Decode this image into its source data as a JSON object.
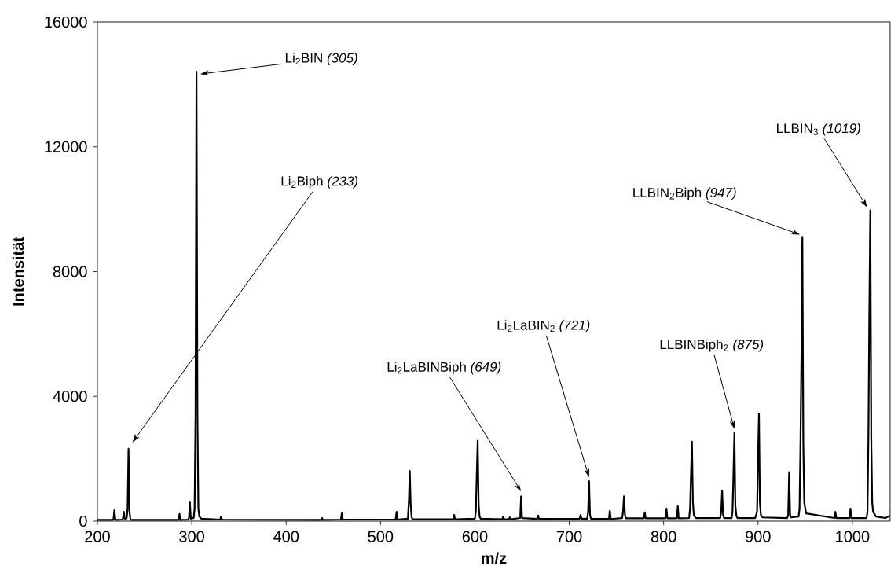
{
  "chart_data": {
    "type": "line",
    "xlabel": "m/z",
    "ylabel": "Intensität",
    "xlim": [
      200,
      1040
    ],
    "ylim": [
      0,
      16000
    ],
    "xticks": [
      200,
      300,
      400,
      500,
      600,
      700,
      800,
      900,
      1000
    ],
    "yticks": [
      0,
      4000,
      8000,
      12000,
      16000
    ],
    "grid": false,
    "marker": "none",
    "line_style": "solid",
    "annotations": [
      "Li$_{2}$BIN *(305)*",
      "Li$_{2}$Biph *(233)*",
      "Li$_{2}$LaBINBiph *(649)*",
      "Li$_{2}$LaBIN$_{2}$ *(721)*",
      "LLBINBiph$_{2}$ *(875)*",
      "LLBIN$_{2}$Biph *(947)*",
      "LLBIN$_{3}$ *(1019)*"
    ],
    "series": [
      {
        "color": "#000000",
        "x": [
          200,
          216,
          217,
          218,
          219,
          220,
          226,
          227,
          228,
          229,
          230,
          231,
          232,
          233,
          234,
          235,
          236,
          260,
          286,
          287,
          288,
          296,
          297,
          298,
          299,
          302,
          303,
          304,
          305,
          306,
          307,
          308,
          310,
          330,
          331,
          332,
          437,
          438,
          439,
          458,
          459,
          460,
          516,
          517,
          518,
          529,
          530,
          531,
          532,
          533,
          534,
          577,
          578,
          579,
          600,
          601,
          602,
          603,
          604,
          605,
          606,
          629,
          630,
          631,
          636,
          637,
          638,
          648,
          649,
          650,
          666,
          667,
          668,
          711,
          712,
          713,
          719,
          720,
          721,
          722,
          723,
          742,
          743,
          744,
          756,
          757,
          758,
          759,
          760,
          779,
          780,
          781,
          802,
          803,
          804,
          814,
          815,
          816,
          827,
          828,
          829,
          830,
          831,
          832,
          834,
          860,
          861,
          862,
          863,
          864,
          872,
          873,
          874,
          875,
          876,
          877,
          878,
          897,
          899,
          900,
          901,
          902,
          903,
          905,
          931,
          932,
          933,
          934,
          935,
          943,
          944,
          945,
          946,
          947,
          948,
          949,
          951,
          981,
          982,
          983,
          997,
          998,
          999,
          1015,
          1016,
          1017,
          1018,
          1019,
          1020,
          1021,
          1022,
          1025,
          1035,
          1040
        ],
        "values": [
          40,
          40,
          60,
          350,
          60,
          40,
          50,
          80,
          300,
          80,
          60,
          100,
          400,
          2320,
          300,
          60,
          40,
          40,
          40,
          230,
          40,
          50,
          100,
          600,
          80,
          100,
          400,
          3380,
          14410,
          3380,
          400,
          150,
          80,
          50,
          150,
          50,
          40,
          100,
          40,
          50,
          250,
          50,
          50,
          300,
          50,
          80,
          600,
          1610,
          500,
          120,
          60,
          60,
          200,
          60,
          80,
          300,
          1500,
          2580,
          500,
          150,
          80,
          60,
          150,
          60,
          60,
          120,
          60,
          100,
          800,
          100,
          70,
          180,
          70,
          80,
          200,
          80,
          80,
          300,
          1280,
          200,
          80,
          70,
          330,
          70,
          100,
          300,
          800,
          200,
          90,
          90,
          280,
          90,
          90,
          400,
          90,
          90,
          480,
          90,
          100,
          400,
          1500,
          2550,
          600,
          200,
          100,
          100,
          300,
          970,
          200,
          100,
          100,
          300,
          1500,
          2830,
          500,
          200,
          100,
          100,
          300,
          2000,
          3450,
          600,
          200,
          120,
          100,
          200,
          1570,
          200,
          120,
          150,
          400,
          2500,
          5240,
          9110,
          2500,
          600,
          250,
          100,
          300,
          100,
          100,
          400,
          100,
          100,
          300,
          2700,
          6830,
          9960,
          2700,
          600,
          300,
          150,
          100,
          180
        ]
      }
    ]
  }
}
